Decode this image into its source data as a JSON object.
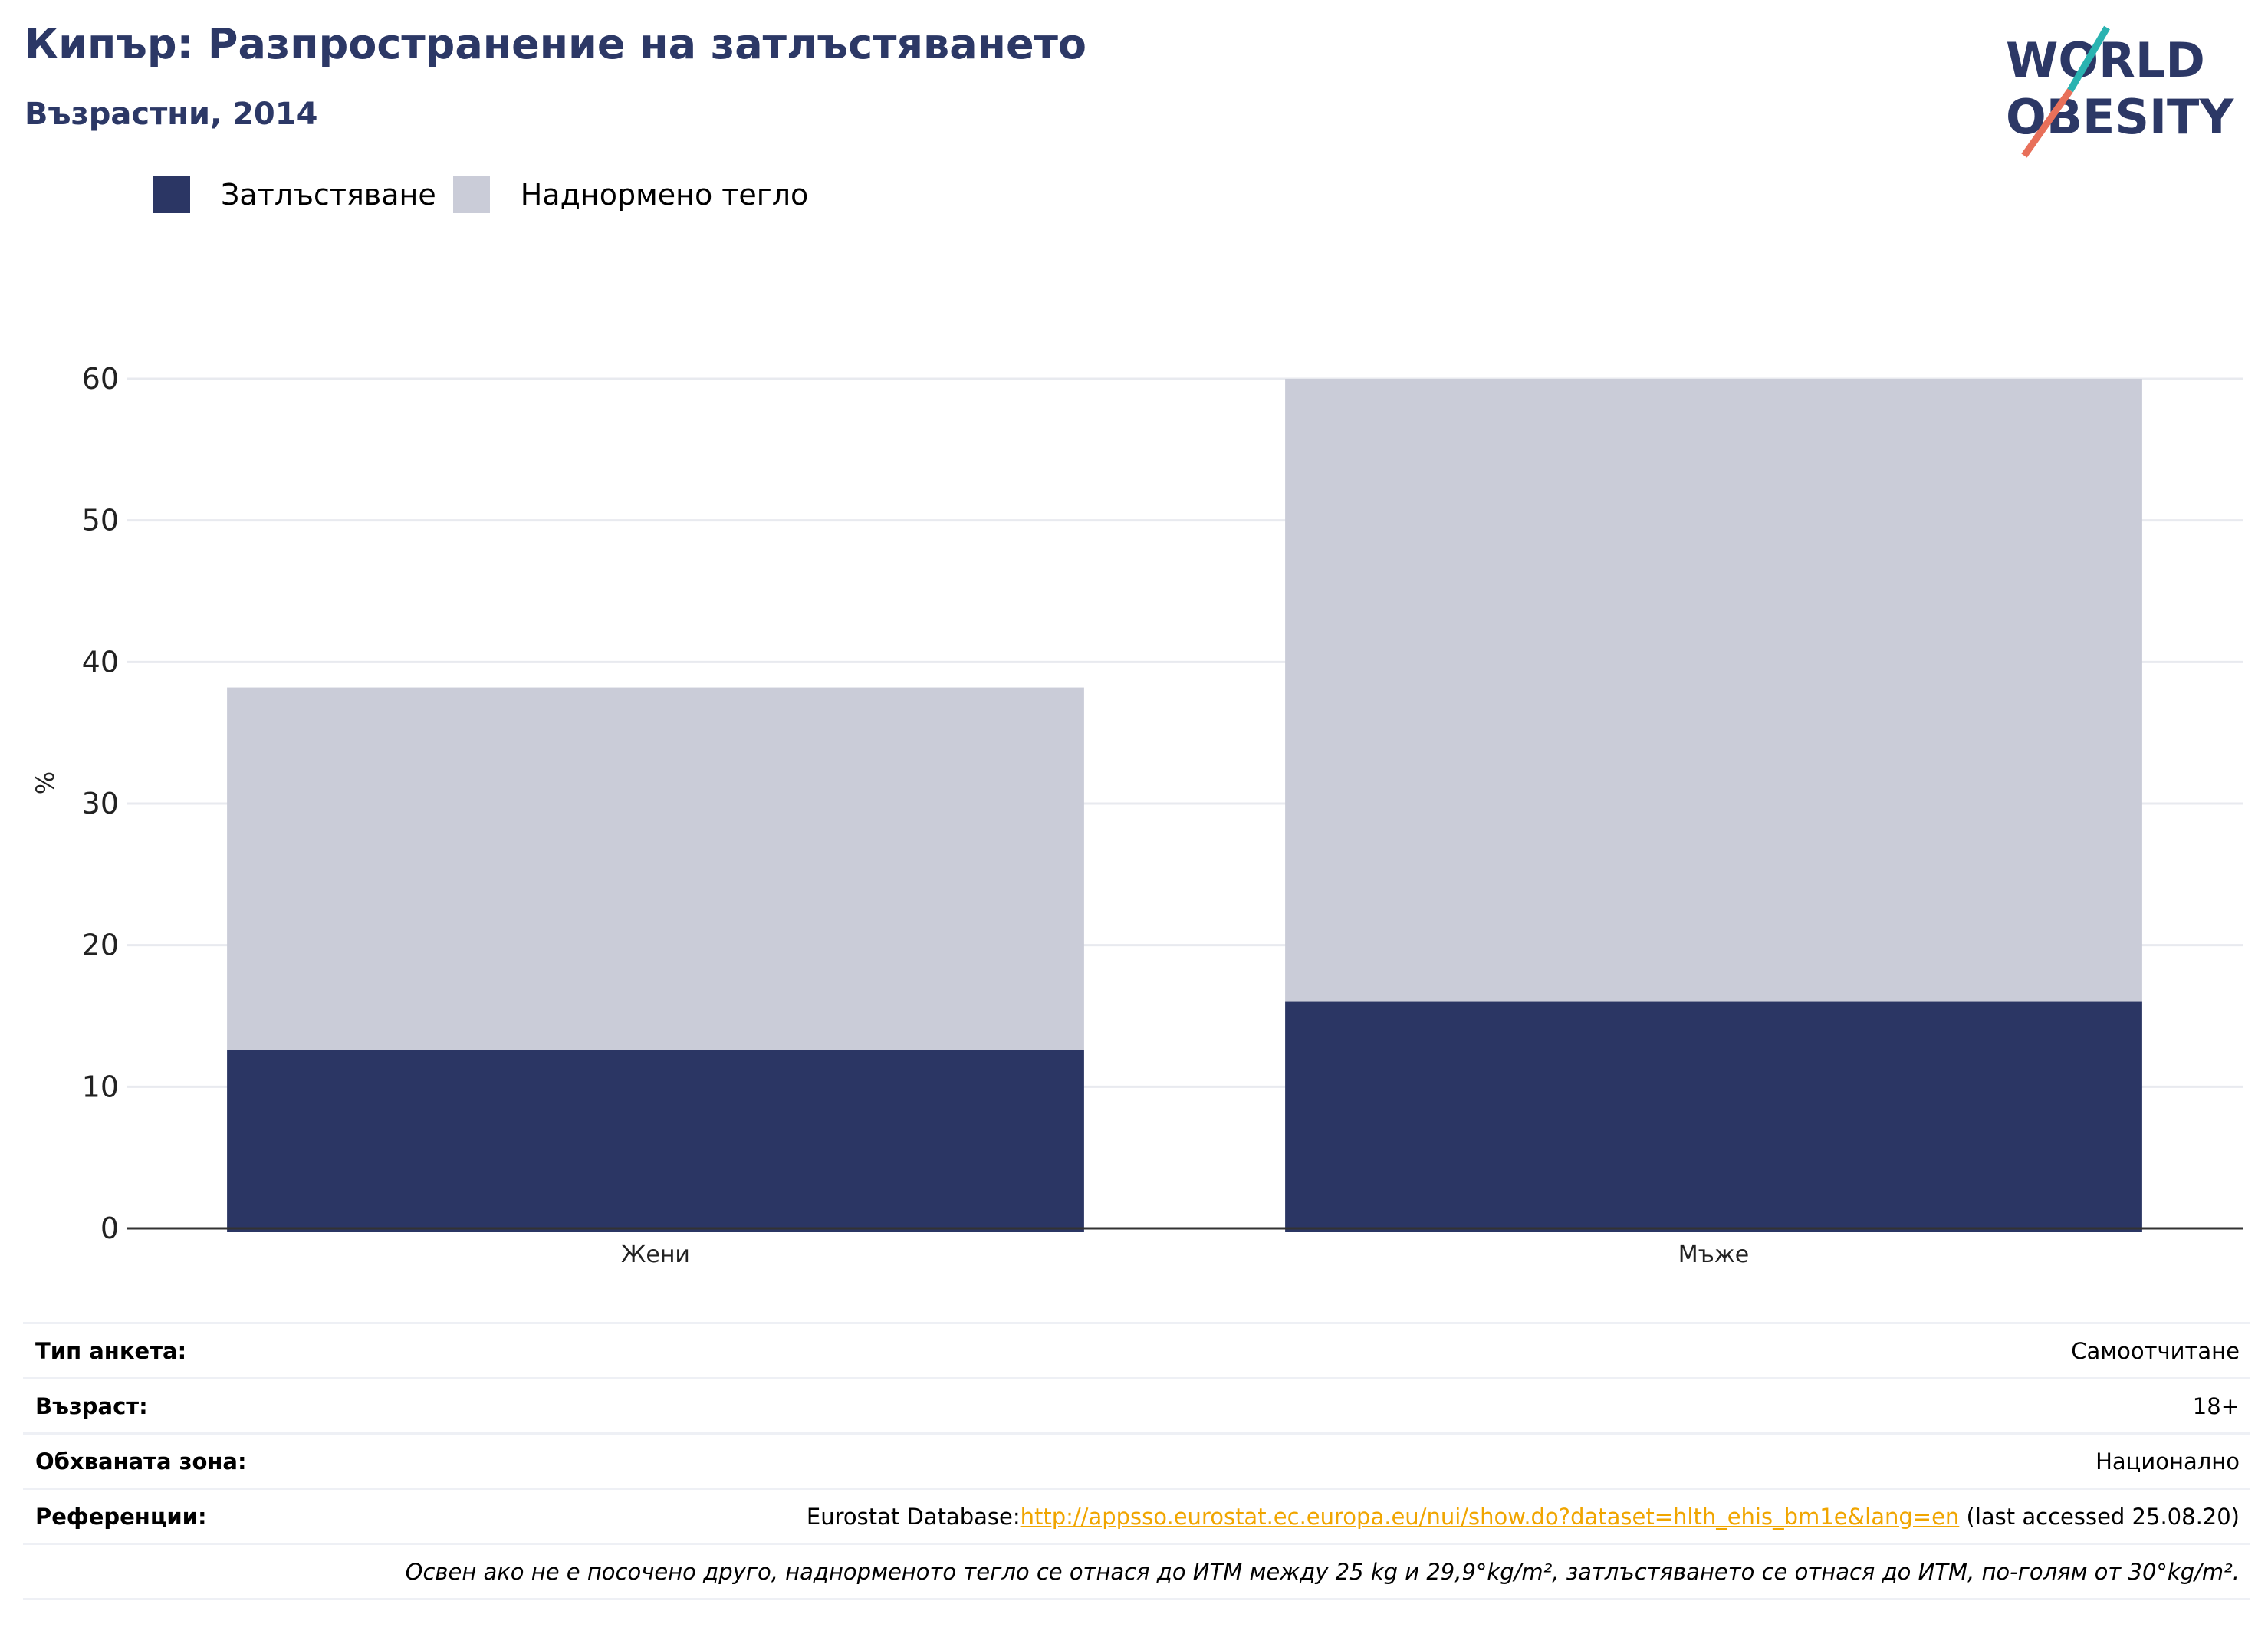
{
  "header": {
    "title": "Кипър: Разпространение на затлъстяването",
    "subtitle": "Възрастни, 2014"
  },
  "logo": {
    "line1": "WORLD",
    "line2": "OBESITY",
    "colors": {
      "text": "#2c3866",
      "slash_top": "#2ab3b1",
      "slash_bottom": "#e8705a"
    }
  },
  "legend": {
    "items": [
      {
        "label": "Затлъстяване",
        "color": "#2b3664"
      },
      {
        "label": "Наднормено тегло",
        "color": "#caccd8"
      }
    ]
  },
  "chart_data": {
    "type": "bar",
    "stacked": true,
    "categories": [
      "Жени",
      "Мъже"
    ],
    "series": [
      {
        "name": "Затлъстяване",
        "values": [
          12.6,
          16.0
        ],
        "color": "#2b3664"
      },
      {
        "name": "Наднормено тегло",
        "values": [
          25.6,
          44.0
        ],
        "color": "#caccd8"
      }
    ],
    "ylabel": "%",
    "ylim": [
      0,
      60
    ],
    "yticks": [
      0,
      10,
      20,
      30,
      40,
      50,
      60
    ],
    "grid": true,
    "legend_position": "top-left"
  },
  "info": {
    "survey_label": "Тип анкета:",
    "survey_value": "Самоотчитане",
    "age_label": "Възраст:",
    "age_value": "18+",
    "area_label": "Обхваната зона:",
    "area_value": "Национално",
    "refs_label": "Референции:",
    "refs_prefix": "Eurostat Database:",
    "refs_link": "http://appsso.eurostat.ec.europa.eu/nui/show.do?dataset=hlth_ehis_bm1e&lang=en",
    "refs_suffix": " (last accessed 25.08.20)",
    "note": "Освен ако не е посочено друго, наднорменото тегло се отнася до ИТМ между 25 kg и 29,9°kg/m², затлъстяването се отнася до ИТМ, по-голям от 30°kg/m²."
  }
}
